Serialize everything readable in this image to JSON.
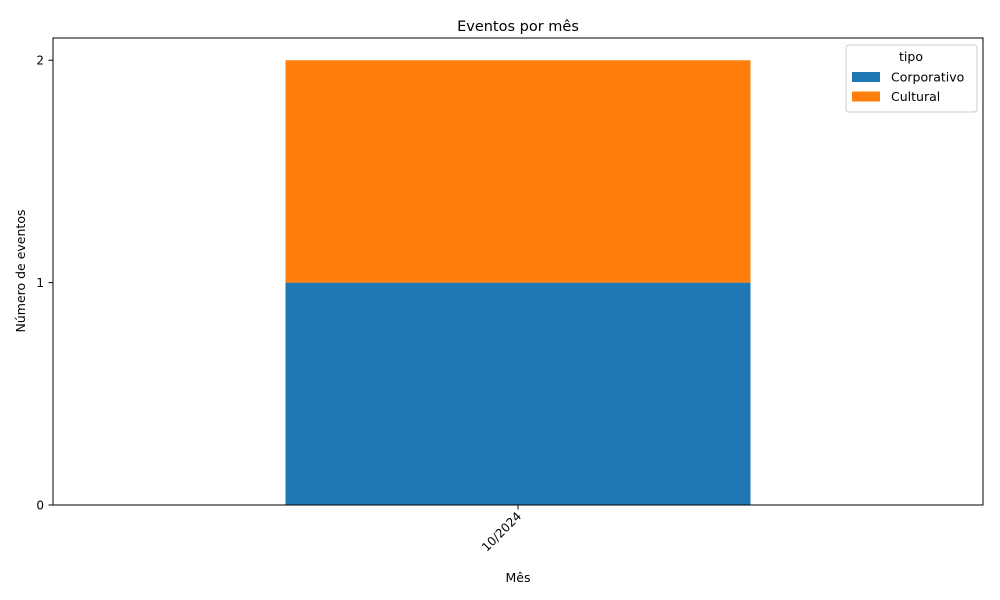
{
  "chart_data": {
    "type": "bar",
    "stacked": true,
    "title": "Eventos por mês",
    "xlabel": "Mês",
    "ylabel": "Número de eventos",
    "categories": [
      "10/2024"
    ],
    "series": [
      {
        "name": "Corporativo",
        "values": [
          1
        ],
        "color": "#1f77b4"
      },
      {
        "name": "Cultural",
        "values": [
          1
        ],
        "color": "#ff7f0e"
      }
    ],
    "ylim": [
      0,
      2.1
    ],
    "yticks": [
      "0",
      "1",
      "2"
    ],
    "grid": false,
    "legend": {
      "title": "tipo",
      "placement": "top-right"
    }
  }
}
